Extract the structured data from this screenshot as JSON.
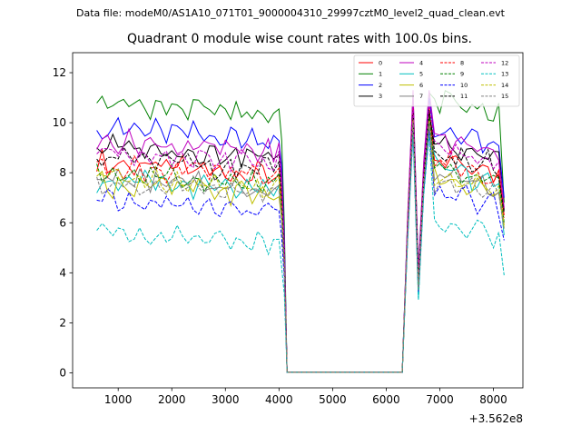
{
  "suptitle": "Data file: modeM0/AS1A10_071T01_9000004310_29997cztM0_level2_quad_clean.evt",
  "chart_data": {
    "type": "line",
    "title": "Quadrant 0 module wise count rates with 100.0s bins.",
    "xlabel": "",
    "ylabel": "",
    "x_offset_label": "+3.562e8",
    "xlim": [
      150,
      8550
    ],
    "ylim": [
      -0.6,
      12.8
    ],
    "xticks": [
      1000,
      2000,
      3000,
      4000,
      5000,
      6000,
      7000,
      8000
    ],
    "yticks": [
      0,
      2,
      4,
      6,
      8,
      10,
      12
    ],
    "x": [
      600,
      700,
      800,
      900,
      1000,
      1100,
      1200,
      1300,
      1400,
      1500,
      1600,
      1700,
      1800,
      1900,
      2000,
      2100,
      2200,
      2300,
      2400,
      2500,
      2600,
      2700,
      2800,
      2900,
      3000,
      3100,
      3200,
      3300,
      3400,
      3500,
      3600,
      3700,
      3800,
      3900,
      4000,
      4050,
      4100,
      4150,
      4200,
      4300,
      4400,
      4500,
      4600,
      4700,
      4800,
      4900,
      5000,
      5100,
      5200,
      5300,
      5400,
      5500,
      5600,
      5700,
      5800,
      5900,
      6000,
      6100,
      6200,
      6300,
      6400,
      6500,
      6600,
      6700,
      6800,
      6900,
      7000,
      7100,
      7200,
      7300,
      7400,
      7500,
      7600,
      7700,
      7800,
      7900,
      8000,
      8100,
      8200
    ],
    "legend": {
      "location": "top-right",
      "columns": 4
    },
    "series": [
      {
        "name": "0",
        "color": "#ff0000",
        "style": "solid",
        "base": 8.4,
        "amp": 0.35,
        "spike": 10.6,
        "dip": 3.6,
        "post": 8.7,
        "end": 6.3
      },
      {
        "name": "1",
        "color": "#008000",
        "style": "solid",
        "base": 10.8,
        "amp": 0.35,
        "spike": 11.2,
        "dip": 4.1,
        "post": 11.0,
        "end": 6.8
      },
      {
        "name": "2",
        "color": "#0000ff",
        "style": "solid",
        "base": 9.8,
        "amp": 0.35,
        "spike": 11.0,
        "dip": 4.0,
        "post": 9.6,
        "end": 7.0
      },
      {
        "name": "3",
        "color": "#000000",
        "style": "solid",
        "base": 9.1,
        "amp": 0.3,
        "spike": 10.4,
        "dip": 3.9,
        "post": 9.1,
        "end": 6.5
      },
      {
        "name": "4",
        "color": "#bf00bf",
        "style": "solid",
        "base": 9.3,
        "amp": 0.3,
        "spike": 11.3,
        "dip": 4.0,
        "post": 9.4,
        "end": 6.6
      },
      {
        "name": "5",
        "color": "#00bfbf",
        "style": "solid",
        "base": 7.7,
        "amp": 0.3,
        "spike": 9.8,
        "dip": 3.0,
        "post": 8.2,
        "end": 5.5
      },
      {
        "name": "6",
        "color": "#bfbf00",
        "style": "solid",
        "base": 7.6,
        "amp": 0.35,
        "spike": 10.0,
        "dip": 3.4,
        "post": 7.8,
        "end": 5.8
      },
      {
        "name": "7",
        "color": "#808080",
        "style": "solid",
        "base": 7.8,
        "amp": 0.3,
        "spike": 10.2,
        "dip": 3.5,
        "post": 8.0,
        "end": 6.0
      },
      {
        "name": "8",
        "color": "#ff0000",
        "style": "dashed",
        "base": 8.3,
        "amp": 0.35,
        "spike": 10.6,
        "dip": 3.5,
        "post": 8.5,
        "end": 6.2
      },
      {
        "name": "9",
        "color": "#008000",
        "style": "dashed",
        "base": 8.0,
        "amp": 0.3,
        "spike": 10.3,
        "dip": 3.4,
        "post": 8.2,
        "end": 6.0
      },
      {
        "name": "10",
        "color": "#0000ff",
        "style": "dashed",
        "base": 6.9,
        "amp": 0.3,
        "spike": 9.7,
        "dip": 3.2,
        "post": 7.2,
        "end": 5.3
      },
      {
        "name": "11",
        "color": "#000000",
        "style": "dashed",
        "base": 8.6,
        "amp": 0.35,
        "spike": 10.5,
        "dip": 3.6,
        "post": 8.8,
        "end": 6.4
      },
      {
        "name": "12",
        "color": "#bf00bf",
        "style": "dashed",
        "base": 8.9,
        "amp": 0.3,
        "spike": 10.8,
        "dip": 3.7,
        "post": 9.0,
        "end": 6.6
      },
      {
        "name": "13",
        "color": "#00bfbf",
        "style": "dashed",
        "base": 5.7,
        "amp": 0.25,
        "spike": 9.5,
        "dip": 2.9,
        "post": 6.0,
        "end": 3.9
      },
      {
        "name": "14",
        "color": "#bfbf00",
        "style": "dashed",
        "base": 7.9,
        "amp": 0.3,
        "spike": 10.1,
        "dip": 3.4,
        "post": 7.9,
        "end": 5.9
      },
      {
        "name": "15",
        "color": "#808080",
        "style": "dashed",
        "base": 7.6,
        "amp": 0.3,
        "spike": 10.0,
        "dip": 3.3,
        "post": 7.7,
        "end": 5.7
      }
    ]
  }
}
